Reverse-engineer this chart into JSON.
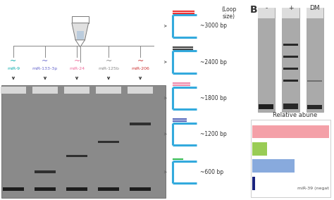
{
  "bg_color": "#ffffff",
  "panel_left": {
    "labels": [
      "9",
      "133-3p",
      "24",
      "125b",
      "206"
    ],
    "label_colors": [
      "#00aaaa",
      "#6666cc",
      "#ee6699",
      "#888888",
      "#cc3333"
    ],
    "gel_bg": "#909090",
    "gel_top_bar": "#cccccc",
    "band_color": "#111111"
  },
  "panel_middle": {
    "loop_sizes": [
      "~3000 bp",
      "~2400 bp",
      "~1800 bp",
      "~1200 bp",
      "~600 bp"
    ],
    "loop_header": "(Loop\nsize)",
    "top_line_colors": [
      "#ee4444",
      "#555555",
      "#ee88aa",
      "#6666bb",
      "#44bb66"
    ],
    "top_line_styles": [
      "red_double",
      "black_double",
      "pink_double",
      "blue_double",
      "green_single"
    ],
    "structure_color": "#33aadd"
  },
  "panel_right": {
    "label_b": "B",
    "conditions": [
      "-",
      "+",
      "DM"
    ],
    "gel_bg": "#aaaaaa",
    "gel_band_color": "#111111",
    "bar_title": "Relative abune",
    "bars": [
      {
        "color": "#f4a0a8",
        "value": 1.0
      },
      {
        "color": "#99cc55",
        "value": 0.2
      },
      {
        "color": "#88aadd",
        "value": 0.55
      },
      {
        "color": "#1a237e",
        "value": 0.04
      }
    ],
    "bar_label": "miR-39 (negat"
  }
}
